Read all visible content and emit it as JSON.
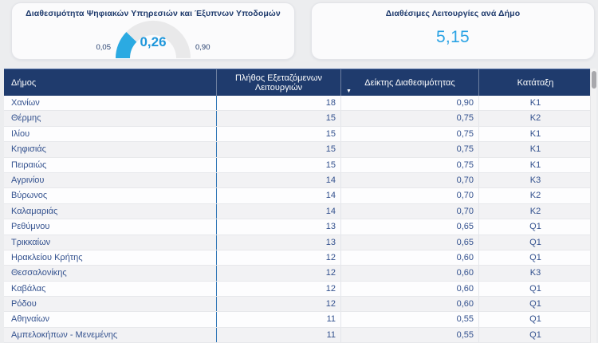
{
  "cards": {
    "gauge_card": {
      "title": "Διαθεσιμότητα Ψηφιακών Υπηρεσιών και Έξυπνων Υποδομών",
      "gauge": {
        "min": 0.05,
        "max": 0.9,
        "value": 0.26,
        "min_label": "0,05",
        "max_label": "0,90",
        "value_label": "0,26",
        "fill_color": "#2BAAE2",
        "track_color": "#E9E9EA",
        "value_text_color": "#1F97DB"
      }
    },
    "kpi_card": {
      "title": "Διαθέσιμες Λειτουργίες ανά Δήμο",
      "value": "5,15"
    }
  },
  "table": {
    "columns": [
      {
        "label": "Δήμος"
      },
      {
        "label": "Πλήθος Εξεταζόμενων Λειτουργιών"
      },
      {
        "label": "Δείκτης Διαθεσιμότητας",
        "sorted": true
      },
      {
        "label": "Κατάταξη"
      }
    ],
    "sort_icon": "▼",
    "rows": [
      {
        "municipality": "Χανίων",
        "functions": "18",
        "index": "0,90",
        "rank": "K1"
      },
      {
        "municipality": "Θέρμης",
        "functions": "15",
        "index": "0,75",
        "rank": "K2"
      },
      {
        "municipality": "Ιλίου",
        "functions": "15",
        "index": "0,75",
        "rank": "K1"
      },
      {
        "municipality": "Κηφισιάς",
        "functions": "15",
        "index": "0,75",
        "rank": "K1"
      },
      {
        "municipality": "Πειραιώς",
        "functions": "15",
        "index": "0,75",
        "rank": "K1"
      },
      {
        "municipality": "Αγρινίου",
        "functions": "14",
        "index": "0,70",
        "rank": "K3"
      },
      {
        "municipality": "Βύρωνος",
        "functions": "14",
        "index": "0,70",
        "rank": "K2"
      },
      {
        "municipality": "Καλαμαριάς",
        "functions": "14",
        "index": "0,70",
        "rank": "K2"
      },
      {
        "municipality": "Ρεθύμνου",
        "functions": "13",
        "index": "0,65",
        "rank": "Q1"
      },
      {
        "municipality": "Τρικκαίων",
        "functions": "13",
        "index": "0,65",
        "rank": "Q1"
      },
      {
        "municipality": "Ηρακλείου Κρήτης",
        "functions": "12",
        "index": "0,60",
        "rank": "Q1"
      },
      {
        "municipality": "Θεσσαλονίκης",
        "functions": "12",
        "index": "0,60",
        "rank": "K3"
      },
      {
        "municipality": "Καβάλας",
        "functions": "12",
        "index": "0,60",
        "rank": "Q1"
      },
      {
        "municipality": "Ρόδου",
        "functions": "12",
        "index": "0,60",
        "rank": "Q1"
      },
      {
        "municipality": "Αθηναίων",
        "functions": "11",
        "index": "0,55",
        "rank": "Q1"
      },
      {
        "municipality": "Αμπελοκήπων - Μενεμένης",
        "functions": "11",
        "index": "0,55",
        "rank": "Q1"
      }
    ]
  },
  "chart_data": [
    {
      "type": "gauge",
      "title": "Διαθεσιμότητα Ψηφιακών Υπηρεσιών και Έξυπνων Υποδομών",
      "min": 0.05,
      "max": 0.9,
      "value": 0.26
    },
    {
      "type": "kpi",
      "title": "Διαθέσιμες Λειτουργίες ανά Δήμο",
      "value": 5.15
    },
    {
      "type": "table",
      "columns": [
        "Δήμος",
        "Πλήθος Εξεταζόμενων Λειτουργιών",
        "Δείκτης Διαθεσιμότητας",
        "Κατάταξη"
      ],
      "rows": [
        [
          "Χανίων",
          18,
          0.9,
          "K1"
        ],
        [
          "Θέρμης",
          15,
          0.75,
          "K2"
        ],
        [
          "Ιλίου",
          15,
          0.75,
          "K1"
        ],
        [
          "Κηφισιάς",
          15,
          0.75,
          "K1"
        ],
        [
          "Πειραιώς",
          15,
          0.75,
          "K1"
        ],
        [
          "Αγρινίου",
          14,
          0.7,
          "K3"
        ],
        [
          "Βύρωνος",
          14,
          0.7,
          "K2"
        ],
        [
          "Καλαμαριάς",
          14,
          0.7,
          "K2"
        ],
        [
          "Ρεθύμνου",
          13,
          0.65,
          "Q1"
        ],
        [
          "Τρικκαίων",
          13,
          0.65,
          "Q1"
        ],
        [
          "Ηρακλείου Κρήτης",
          12,
          0.6,
          "Q1"
        ],
        [
          "Θεσσαλονίκης",
          12,
          0.6,
          "K3"
        ],
        [
          "Καβάλας",
          12,
          0.6,
          "Q1"
        ],
        [
          "Ρόδου",
          12,
          0.6,
          "Q1"
        ],
        [
          "Αθηναίων",
          11,
          0.55,
          "Q1"
        ],
        [
          "Αμπελοκήπων - Μενεμένης",
          11,
          0.55,
          "Q1"
        ]
      ]
    }
  ]
}
